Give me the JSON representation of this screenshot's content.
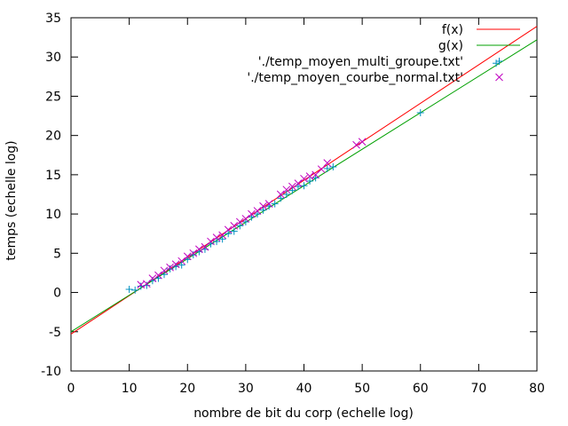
{
  "chart_data": {
    "type": "scatter",
    "title": "",
    "xlabel": "nombre de bit du corp (echelle log)",
    "ylabel": "temps (echelle log)",
    "xlim": [
      0,
      80
    ],
    "ylim": [
      -10,
      35
    ],
    "xticks": [
      0,
      10,
      20,
      30,
      40,
      50,
      60,
      70,
      80
    ],
    "yticks": [
      -10,
      -5,
      0,
      5,
      10,
      15,
      20,
      25,
      30,
      35
    ],
    "xtick_labels": [
      "0",
      "10",
      "20",
      "30",
      "40",
      "50",
      "60",
      "70",
      "80"
    ],
    "ytick_labels": [
      "-10",
      "-5",
      "0",
      "5",
      "10",
      "15",
      "20",
      "25",
      "30",
      "35"
    ],
    "grid": false,
    "legend_position": "top-right",
    "lines": [
      {
        "name": "f(x)",
        "color": "#ff0000",
        "x": [
          0,
          80
        ],
        "y": [
          -5.3,
          33.9
        ]
      },
      {
        "name": "g(x)",
        "color": "#00a000",
        "x": [
          0,
          80
        ],
        "y": [
          -5.0,
          32.2
        ]
      }
    ],
    "series": [
      {
        "name": "'./temp_moyen_multi_groupe.txt'",
        "color": "#0090c0",
        "marker": "plus",
        "x": [
          10,
          11,
          12,
          13,
          14,
          15,
          16,
          17,
          18,
          19,
          20,
          21,
          22,
          23,
          24,
          25,
          26,
          27,
          28,
          29,
          30,
          31,
          32,
          33,
          34,
          35,
          36,
          37,
          38,
          39,
          40,
          41,
          42,
          44,
          45,
          60,
          73
        ],
        "y": [
          0.4,
          0.3,
          0.8,
          0.9,
          1.5,
          1.8,
          2.3,
          3.0,
          3.3,
          3.5,
          4.2,
          4.8,
          5.2,
          5.5,
          6.2,
          6.5,
          6.8,
          7.5,
          7.8,
          8.5,
          9.0,
          9.6,
          10.0,
          10.5,
          11.0,
          11.3,
          12.0,
          12.5,
          13.0,
          13.5,
          13.6,
          14.2,
          14.6,
          15.8,
          16.0,
          22.9,
          29.2
        ]
      },
      {
        "name": "'./temp_moyen_courbe_normal.txt'",
        "color": "#c000c0",
        "marker": "cross",
        "x": [
          12,
          13,
          14,
          15,
          16,
          17,
          18,
          19,
          20,
          21,
          22,
          23,
          24,
          25,
          26,
          27,
          28,
          29,
          30,
          31,
          32,
          33,
          34,
          36,
          37,
          38,
          39,
          40,
          41,
          42,
          43,
          44,
          49,
          50
        ],
        "y": [
          1.0,
          1.1,
          1.8,
          2.2,
          2.8,
          3.2,
          3.6,
          4.0,
          4.6,
          5.0,
          5.5,
          5.8,
          6.5,
          7.0,
          7.3,
          8.0,
          8.5,
          9.0,
          9.4,
          10.0,
          10.4,
          11.0,
          11.3,
          12.5,
          13.1,
          13.5,
          13.9,
          14.5,
          14.8,
          15.0,
          15.7,
          16.5,
          18.8,
          19.2
        ]
      }
    ]
  }
}
